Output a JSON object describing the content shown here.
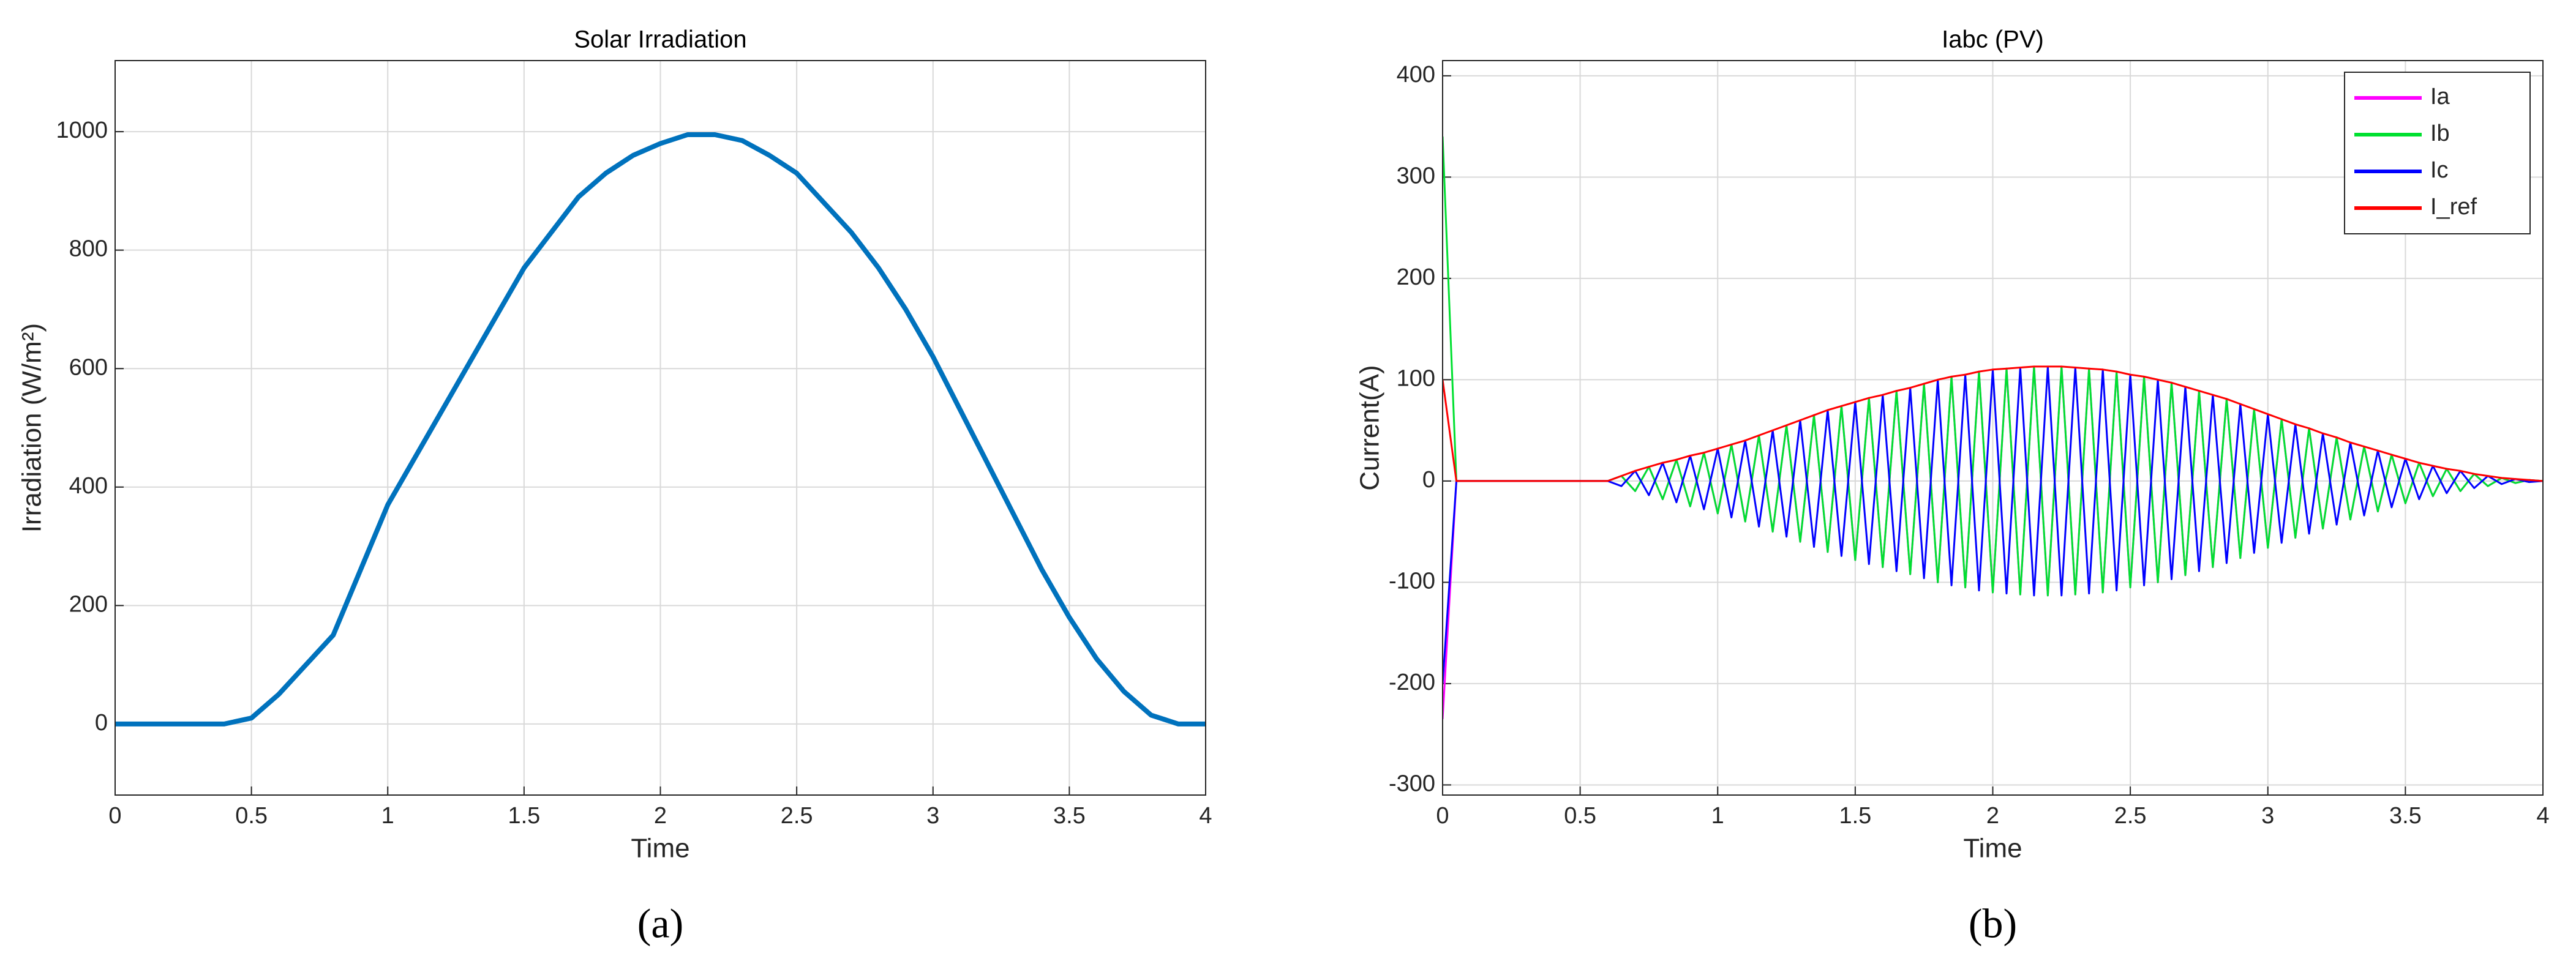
{
  "chart_data": [
    {
      "type": "line",
      "title": "Solar Irradiation",
      "x_label": "Time",
      "y_label": "Irradiation (W/m²)",
      "caption": "(a)",
      "x": [
        0,
        0.1,
        0.2,
        0.3,
        0.4,
        0.5,
        0.6,
        0.7,
        0.8,
        0.9,
        1,
        1.1,
        1.2,
        1.3,
        1.4,
        1.5,
        1.6,
        1.7,
        1.8,
        1.9,
        2,
        2.1,
        2.2,
        2.3,
        2.4,
        2.5,
        2.6,
        2.7,
        2.8,
        2.9,
        3,
        3.1,
        3.2,
        3.3,
        3.4,
        3.5,
        3.6,
        3.7,
        3.8,
        3.9,
        4
      ],
      "values": [
        0,
        0,
        0,
        0,
        0,
        10,
        50,
        100,
        150,
        260,
        370,
        450,
        530,
        610,
        690,
        770,
        830,
        890,
        930,
        960,
        980,
        995,
        995,
        985,
        960,
        930,
        880,
        830,
        770,
        700,
        620,
        530,
        440,
        350,
        260,
        180,
        110,
        55,
        15,
        0,
        0
      ],
      "color": "#0072bd",
      "xlim": [
        0,
        4
      ],
      "xticks": [
        0,
        0.5,
        1,
        1.5,
        2,
        2.5,
        3,
        3.5,
        4
      ],
      "ylim": [
        -120,
        1120
      ],
      "yticks": [
        0,
        200,
        400,
        600,
        800,
        1000
      ],
      "grid": true
    },
    {
      "type": "line",
      "title": "Iabc (PV)",
      "x_label": "Time",
      "y_label": "Current(A)",
      "caption": "(b)",
      "legend": "upper right",
      "x": [
        0,
        0.05,
        0.1,
        0.15,
        0.2,
        0.25,
        0.3,
        0.35,
        0.4,
        0.45,
        0.5,
        0.55,
        0.6,
        0.65,
        0.7,
        0.75,
        0.8,
        0.85,
        0.9,
        0.95,
        1,
        1.05,
        1.1,
        1.15,
        1.2,
        1.25,
        1.3,
        1.35,
        1.4,
        1.45,
        1.5,
        1.55,
        1.6,
        1.65,
        1.7,
        1.75,
        1.8,
        1.85,
        1.9,
        1.95,
        2,
        2.05,
        2.1,
        2.15,
        2.2,
        2.25,
        2.3,
        2.35,
        2.4,
        2.45,
        2.5,
        2.55,
        2.6,
        2.65,
        2.7,
        2.75,
        2.8,
        2.85,
        2.9,
        2.95,
        3,
        3.05,
        3.1,
        3.15,
        3.2,
        3.25,
        3.3,
        3.35,
        3.4,
        3.45,
        3.5,
        3.55,
        3.6,
        3.65,
        3.7,
        3.75,
        3.8,
        3.85,
        3.9,
        3.95,
        4
      ],
      "series": [
        {
          "name": "Ia",
          "color": "#ff00ff",
          "values": [
            -235,
            0,
            0,
            0,
            0,
            0,
            0,
            0,
            0,
            0,
            0,
            0,
            0,
            5,
            -10,
            14,
            -18,
            21,
            -25,
            28,
            -32,
            36,
            -40,
            45,
            -50,
            55,
            -60,
            65,
            -70,
            74,
            -78,
            82,
            -85,
            89,
            -92,
            96,
            -100,
            103,
            -105,
            108,
            -110,
            111,
            -112,
            113,
            -113,
            113,
            -112,
            111,
            -110,
            108,
            -105,
            103,
            -100,
            97,
            -93,
            89,
            -85,
            81,
            -76,
            71,
            -66,
            61,
            -56,
            52,
            -47,
            43,
            -38,
            34,
            -30,
            26,
            -22,
            18,
            -15,
            12,
            -10,
            7,
            -5,
            3,
            -2,
            1,
            0
          ]
        },
        {
          "name": "Ib",
          "color": "#00e030",
          "values": [
            340,
            0,
            0,
            0,
            0,
            0,
            0,
            0,
            0,
            0,
            0,
            0,
            0,
            5,
            -10,
            14,
            -18,
            21,
            -25,
            28,
            -32,
            36,
            -40,
            45,
            -50,
            55,
            -60,
            65,
            -70,
            74,
            -78,
            82,
            -85,
            89,
            -92,
            96,
            -100,
            103,
            -105,
            108,
            -110,
            111,
            -112,
            113,
            -113,
            113,
            -112,
            111,
            -110,
            108,
            -105,
            103,
            -100,
            97,
            -93,
            89,
            -85,
            81,
            -76,
            71,
            -66,
            61,
            -56,
            52,
            -47,
            43,
            -38,
            34,
            -30,
            26,
            -22,
            18,
            -15,
            12,
            -10,
            7,
            -5,
            3,
            -2,
            1,
            0
          ]
        },
        {
          "name": "Ic",
          "color": "#0000ff",
          "values": [
            -200,
            0,
            0,
            0,
            0,
            0,
            0,
            0,
            0,
            0,
            0,
            0,
            0,
            -5,
            10,
            -14,
            18,
            -21,
            25,
            -28,
            32,
            -36,
            40,
            -45,
            50,
            -55,
            60,
            -65,
            70,
            -74,
            78,
            -82,
            85,
            -89,
            92,
            -96,
            100,
            -103,
            105,
            -108,
            110,
            -111,
            112,
            -113,
            113,
            -113,
            112,
            -111,
            110,
            -108,
            105,
            -103,
            100,
            -97,
            93,
            -89,
            85,
            -81,
            76,
            -71,
            66,
            -61,
            56,
            -52,
            47,
            -43,
            38,
            -34,
            30,
            -26,
            22,
            -18,
            15,
            -12,
            10,
            -7,
            5,
            -3,
            2,
            -1,
            0
          ]
        },
        {
          "name": "I_ref",
          "color": "#ff0000",
          "values": [
            100,
            0,
            0,
            0,
            0,
            0,
            0,
            0,
            0,
            0,
            0,
            0,
            0,
            5,
            10,
            14,
            18,
            21,
            25,
            28,
            32,
            36,
            40,
            45,
            50,
            55,
            60,
            65,
            70,
            74,
            78,
            82,
            85,
            89,
            92,
            96,
            100,
            103,
            105,
            108,
            110,
            111,
            112,
            113,
            113,
            113,
            112,
            111,
            110,
            108,
            105,
            103,
            100,
            97,
            93,
            89,
            85,
            81,
            76,
            71,
            66,
            61,
            56,
            52,
            47,
            43,
            38,
            34,
            30,
            26,
            22,
            18,
            15,
            12,
            10,
            7,
            5,
            3,
            2,
            1,
            0
          ]
        }
      ],
      "xlim": [
        0,
        4
      ],
      "xticks": [
        0,
        0.5,
        1,
        1.5,
        2,
        2.5,
        3,
        3.5,
        4
      ],
      "ylim": [
        -310,
        415
      ],
      "yticks": [
        -300,
        -200,
        -100,
        0,
        100,
        200,
        300,
        400
      ],
      "grid": true
    }
  ]
}
